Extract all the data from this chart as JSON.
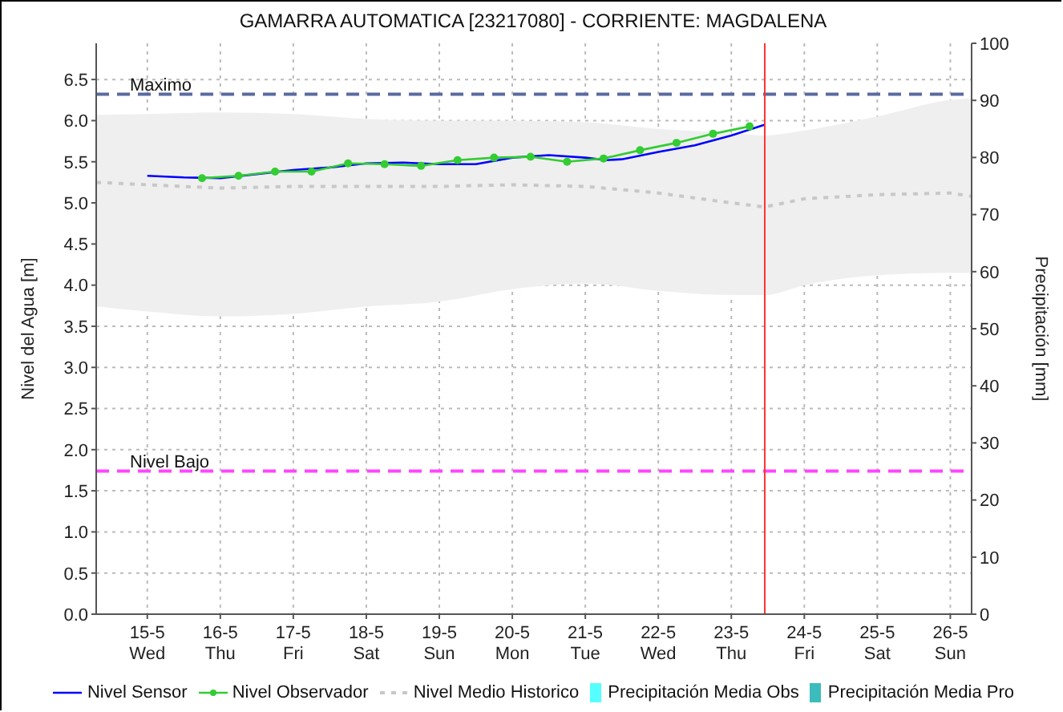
{
  "chart_data": {
    "type": "line",
    "title": "GAMARRA AUTOMATICA [23217080] - CORRIENTE: MAGDALENA",
    "ylabel": "Nivel del Agua [m]",
    "y2label": "Precipitación [mm]",
    "xlim": [
      "--05-14T07:12",
      "--05-26T07:00"
    ],
    "xticks": [
      {
        "value": "--05-15",
        "label": "15-5\nWed"
      },
      {
        "value": "--05-16",
        "label": "16-5\nThu"
      },
      {
        "value": "--05-17",
        "label": "17-5\nFri"
      },
      {
        "value": "--05-18",
        "label": "18-5\nSat"
      },
      {
        "value": "--05-19",
        "label": "19-5\nSun"
      },
      {
        "value": "--05-20",
        "label": "20-5\nMon"
      },
      {
        "value": "--05-21",
        "label": "21-5\nTue"
      },
      {
        "value": "--05-22",
        "label": "22-5\nWed"
      },
      {
        "value": "--05-23",
        "label": "23-5\nThu"
      },
      {
        "value": "--05-24",
        "label": "24-5\nFri"
      },
      {
        "value": "--05-25",
        "label": "25-5\nSat"
      },
      {
        "value": "--05-26",
        "label": "26-5\nSun"
      }
    ],
    "ylim": [
      0,
      6.94
    ],
    "yticks": [
      {
        "value": 0,
        "label": "0.0"
      },
      0.5,
      {
        "value": 1,
        "label": "1.0"
      },
      1.5,
      {
        "value": 2,
        "label": "2.0"
      },
      2.5,
      {
        "value": 3,
        "label": "3.0"
      },
      3.5,
      {
        "value": 4,
        "label": "4.0"
      },
      4.5,
      {
        "value": 5,
        "label": "5.0"
      },
      5.5,
      {
        "value": 6,
        "label": "6.0"
      },
      6.5
    ],
    "y2lim": [
      0,
      100
    ],
    "y2ticks": [
      0,
      10,
      20,
      30,
      40,
      50,
      60,
      70,
      80,
      90,
      100
    ],
    "grid": true,
    "legend": "bottom",
    "ref_lines": [
      {
        "axis": "y",
        "value": 6.32,
        "label": "Maximo",
        "color": "#5a6aa0",
        "line_style": "dashed"
      },
      {
        "axis": "y",
        "value": 1.74,
        "label": "Nivel Bajo",
        "color": "#ff44ff",
        "line_style": "dashed"
      },
      {
        "axis": "x",
        "value": "--05-23T11:00",
        "label": null,
        "color": "#ff3333",
        "line_style": "solid"
      }
    ],
    "series": [
      {
        "name": "Nivel Sensor",
        "color": "#0000ff",
        "line_style": "solid",
        "marker": "none",
        "x": [
          "--05-15T00:00",
          "--05-15T12:00",
          "--05-16T00:00",
          "--05-16T12:00",
          "--05-17T00:00",
          "--05-17T12:00",
          "--05-18T00:00",
          "--05-18T12:00",
          "--05-19T00:00",
          "--05-19T12:00",
          "--05-20T00:00",
          "--05-20T12:00",
          "--05-21T00:00",
          "--05-21T07:00",
          "--05-21T12:00",
          "--05-22T00:00",
          "--05-22T12:00",
          "--05-23T00:00",
          "--05-23T11:00"
        ],
        "values": [
          5.33,
          5.31,
          5.3,
          5.35,
          5.4,
          5.43,
          5.48,
          5.49,
          5.47,
          5.47,
          5.55,
          5.58,
          5.55,
          5.52,
          5.53,
          5.62,
          5.7,
          5.82,
          5.95
        ]
      },
      {
        "name": "Nivel Observador",
        "color": "#33cc33",
        "line_style": "solid",
        "marker": "circle",
        "x": [
          "--05-15T18:00",
          "--05-16T06:00",
          "--05-16T18:00",
          "--05-17T06:00",
          "--05-17T18:00",
          "--05-18T06:00",
          "--05-18T18:00",
          "--05-19T06:00",
          "--05-19T18:00",
          "--05-20T06:00",
          "--05-20T18:00",
          "--05-21T06:00",
          "--05-21T18:00",
          "--05-22T06:00",
          "--05-22T18:00",
          "--05-23T06:00"
        ],
        "values": [
          5.3,
          5.33,
          5.38,
          5.38,
          5.48,
          5.47,
          5.45,
          5.52,
          5.55,
          5.56,
          5.5,
          5.54,
          5.64,
          5.73,
          5.84,
          5.93
        ]
      },
      {
        "name": "Nivel Medio Historico",
        "color": "#c8c8c8",
        "line_style": "dotted",
        "marker": "none",
        "x": [
          "--05-14T07:12",
          "--05-15T00:00",
          "--05-16T00:00",
          "--05-17T00:00",
          "--05-18T00:00",
          "--05-19T00:00",
          "--05-20T00:00",
          "--05-21T00:00",
          "--05-22T00:00",
          "--05-23T00:00",
          "--05-23T11:00",
          "--05-24T00:00",
          "--05-25T00:00",
          "--05-26T00:00",
          "--05-26T07:00"
        ],
        "values": [
          5.25,
          5.22,
          5.18,
          5.2,
          5.2,
          5.2,
          5.22,
          5.2,
          5.12,
          5.0,
          4.95,
          5.05,
          5.1,
          5.12,
          5.08
        ],
        "lower": [
          3.74,
          3.68,
          3.62,
          3.65,
          3.74,
          3.8,
          3.95,
          4.02,
          3.93,
          3.88,
          3.88,
          4.0,
          4.12,
          4.15,
          4.15
        ],
        "upper": [
          6.07,
          6.08,
          6.1,
          6.08,
          6.02,
          6.0,
          6.0,
          5.98,
          5.9,
          5.85,
          5.82,
          5.88,
          6.05,
          6.25,
          6.27
        ]
      },
      {
        "name": "Precipitación Media Obs",
        "type": "bar",
        "color": "#55ffff"
      },
      {
        "name": "Precipitación Media Pro",
        "type": "bar",
        "color": "#3cbcbc"
      }
    ]
  }
}
